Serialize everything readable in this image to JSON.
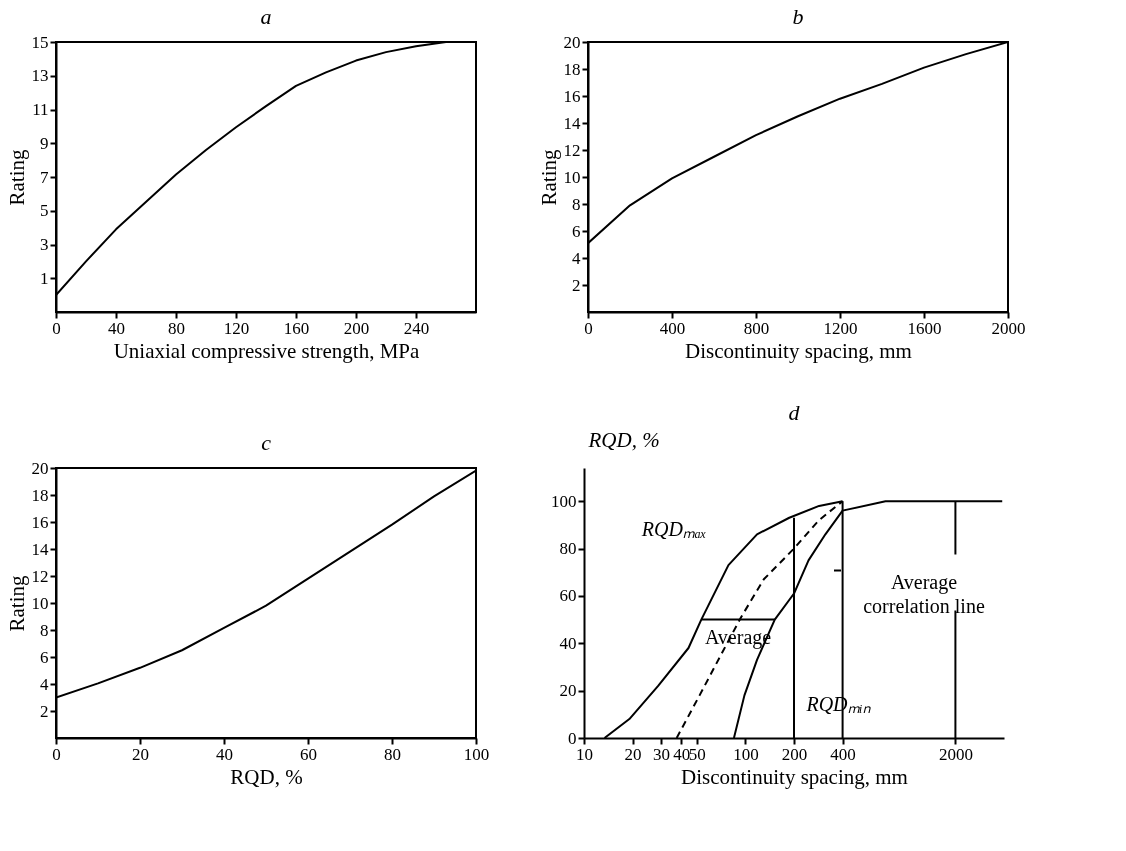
{
  "chart_data": [
    {
      "type": "line",
      "title": "a",
      "xlabel": "Uniaxial compressive strength, MPa",
      "ylabel": "Rating",
      "x": [
        0,
        20,
        40,
        80,
        100,
        120,
        140,
        160,
        180,
        200,
        220,
        240,
        260,
        280
      ],
      "series": [
        {
          "color": "#000000",
          "values": [
            0,
            2.0,
            3.9,
            7.15,
            8.6,
            9.95,
            11.2,
            12.4,
            13.2,
            13.9,
            14.4,
            14.75,
            15,
            15
          ]
        }
      ],
      "xlim": [
        0,
        280
      ],
      "xticks": [
        0,
        40,
        80,
        120,
        160,
        200,
        240
      ],
      "ylim": [
        -1,
        15
      ],
      "yticks": [
        1,
        3,
        5,
        7,
        9,
        11,
        13,
        15
      ]
    },
    {
      "type": "line",
      "title": "b",
      "xlabel": "Discontinuity spacing, mm",
      "ylabel": "Rating",
      "x": [
        0,
        200,
        400,
        600,
        800,
        1000,
        1200,
        1400,
        1600,
        1800,
        2000
      ],
      "series": [
        {
          "color": "#000000",
          "values": [
            5.1,
            7.9,
            9.9,
            11.5,
            13.1,
            14.5,
            15.8,
            16.9,
            18.1,
            19.1,
            20
          ]
        }
      ],
      "xlim": [
        0,
        2000
      ],
      "xticks": [
        0,
        400,
        800,
        1200,
        1600,
        2000
      ],
      "ylim": [
        0,
        20
      ],
      "yticks": [
        2,
        4,
        6,
        8,
        10,
        12,
        14,
        16,
        18,
        20
      ]
    },
    {
      "type": "line",
      "title": "c",
      "xlabel": "RQD, %",
      "ylabel": "Rating",
      "x": [
        0,
        10,
        20,
        30,
        40,
        50,
        60,
        70,
        80,
        90,
        100
      ],
      "series": [
        {
          "color": "#000000",
          "values": [
            3,
            4.05,
            5.2,
            6.5,
            8.15,
            9.8,
            11.8,
            13.8,
            15.8,
            17.9,
            19.8
          ]
        }
      ],
      "xlim": [
        0,
        100
      ],
      "xticks": [
        0,
        20,
        40,
        60,
        80,
        100
      ],
      "ylim": [
        0,
        20
      ],
      "yticks": [
        2,
        4,
        6,
        8,
        10,
        12,
        14,
        16,
        18,
        20
      ]
    },
    {
      "type": "line",
      "title": "d",
      "xlabel": "Discontinuity spacing, mm",
      "ylabel": "RQD, %",
      "log": "x",
      "legend": "right",
      "series": [
        {
          "name": "RQDₘₐₓ",
          "color": "#000000",
          "x": [
            13.4,
            19.1,
            28.8,
            44.4,
            53.3,
            78.5,
            118,
            187,
            286,
            400
          ],
          "values": [
            0,
            8,
            22,
            38,
            50,
            73,
            86,
            93,
            98,
            100
          ]
        },
        {
          "name": "Average correlation line",
          "color": "#000000",
          "line_style": "dashed",
          "x": [
            37.5,
            52,
            71.7,
            94,
            130,
            200,
            286,
            400
          ],
          "values": [
            0,
            18,
            36,
            51,
            67,
            80,
            92,
            100
          ]
        },
        {
          "name": "RQDₘᵢₙ",
          "color": "#000000",
          "x": [
            84.9,
            98.6,
            118,
            152,
            200,
            246,
            313,
            400,
            738,
            3900
          ],
          "values": [
            0,
            18,
            33,
            50,
            61,
            75,
            86,
            96,
            100,
            100
          ]
        },
        {
          "color": "#000000",
          "x": [
            53.3,
            152
          ],
          "values": [
            50,
            50
          ]
        },
        {
          "color": "#000000",
          "x": [
            200,
            200
          ],
          "values": [
            0,
            93
          ]
        },
        {
          "color": "#000000",
          "x": [
            400,
            400
          ],
          "values": [
            0,
            100
          ]
        },
        {
          "color": "#000000",
          "x": [
            2000,
            2000
          ],
          "values": [
            0,
            100
          ]
        }
      ],
      "annotations": [
        {
          "text": "Average",
          "x": 90,
          "y": 50
        }
      ],
      "xlim": [
        10,
        4000
      ],
      "xticks": [
        10,
        20,
        30,
        40,
        50,
        100,
        200,
        400,
        2000
      ],
      "ylim": [
        0,
        114
      ],
      "yticks": [
        0,
        20,
        40,
        60,
        80,
        100
      ]
    }
  ]
}
